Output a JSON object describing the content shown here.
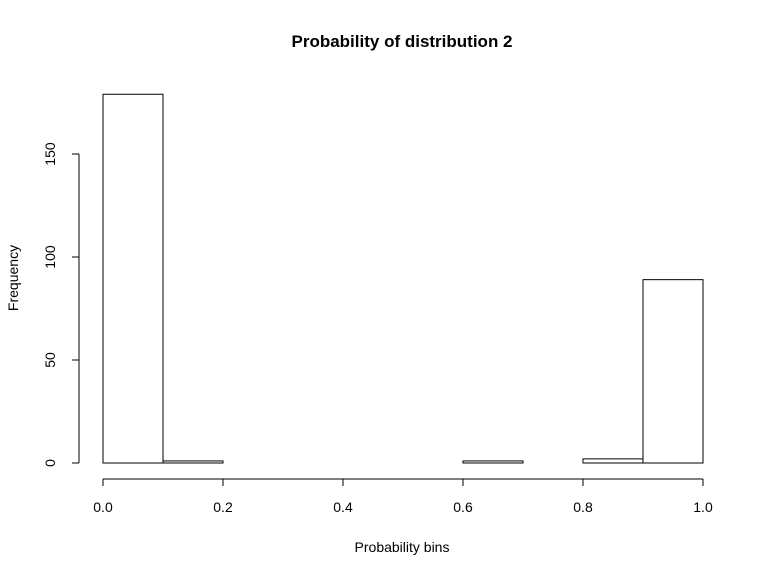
{
  "chart_data": {
    "type": "bar",
    "title": "Probability of distribution 2",
    "xlabel": "Probability bins",
    "ylabel": "Frequency",
    "bins": [
      {
        "x0": 0.0,
        "x1": 0.1,
        "value": 179
      },
      {
        "x0": 0.1,
        "x1": 0.2,
        "value": 1
      },
      {
        "x0": 0.2,
        "x1": 0.3,
        "value": 0
      },
      {
        "x0": 0.3,
        "x1": 0.4,
        "value": 0
      },
      {
        "x0": 0.4,
        "x1": 0.5,
        "value": 0
      },
      {
        "x0": 0.5,
        "x1": 0.6,
        "value": 0
      },
      {
        "x0": 0.6,
        "x1": 0.7,
        "value": 1
      },
      {
        "x0": 0.7,
        "x1": 0.8,
        "value": 0
      },
      {
        "x0": 0.8,
        "x1": 0.9,
        "value": 2
      },
      {
        "x0": 0.9,
        "x1": 1.0,
        "value": 89
      }
    ],
    "xlim": [
      0,
      1
    ],
    "ylim": [
      0,
      180
    ],
    "x_ticks": [
      0.0,
      0.2,
      0.4,
      0.6,
      0.8,
      1.0
    ],
    "x_tick_labels": [
      "0.0",
      "0.2",
      "0.4",
      "0.6",
      "0.8",
      "1.0"
    ],
    "y_ticks": [
      0,
      50,
      100,
      150
    ],
    "y_tick_labels": [
      "0",
      "50",
      "100",
      "150"
    ],
    "grid": false,
    "legend": "none"
  }
}
